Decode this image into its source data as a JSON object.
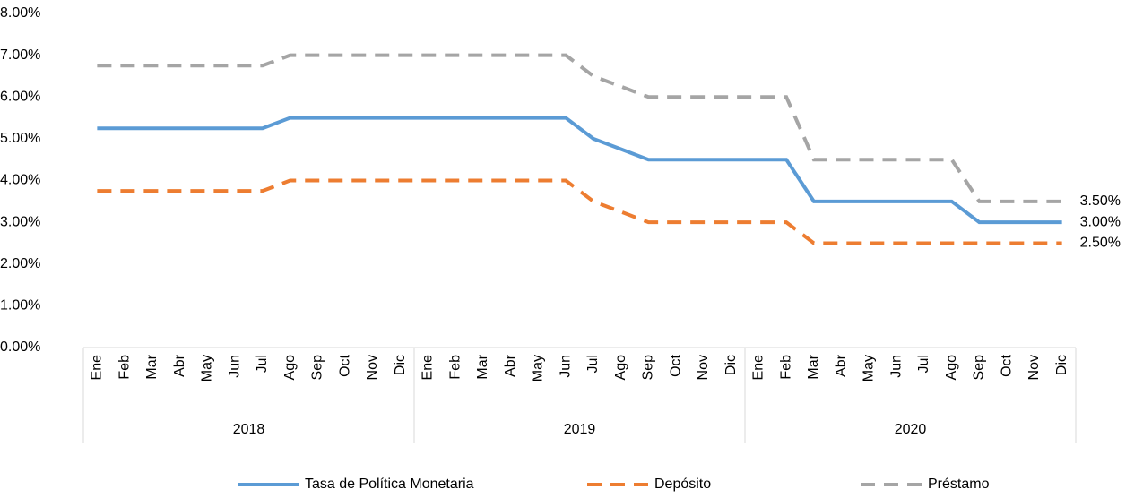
{
  "chart_data": {
    "type": "line",
    "categories": [
      "Ene",
      "Feb",
      "Mar",
      "Abr",
      "May",
      "Jun",
      "Jul",
      "Ago",
      "Sep",
      "Oct",
      "Nov",
      "Dic",
      "Ene",
      "Feb",
      "Mar",
      "Abr",
      "May",
      "Jun",
      "Jul",
      "Ago",
      "Sep",
      "Oct",
      "Nov",
      "Dic",
      "Ene",
      "Feb",
      "Mar",
      "Abr",
      "May",
      "Jun",
      "Jul",
      "Ago",
      "Sep",
      "Oct",
      "Nov",
      "Dic"
    ],
    "groups": [
      "2018",
      "2019",
      "2020"
    ],
    "ylim": [
      0,
      8
    ],
    "yticks": [
      {
        "value": 0,
        "label": "0.00%"
      },
      {
        "value": 1,
        "label": "1.00%"
      },
      {
        "value": 2,
        "label": "2.00%"
      },
      {
        "value": 3,
        "label": "3.00%"
      },
      {
        "value": 4,
        "label": "4.00%"
      },
      {
        "value": 5,
        "label": "5.00%"
      },
      {
        "value": 6,
        "label": "6.00%"
      },
      {
        "value": 7,
        "label": "7.00%"
      },
      {
        "value": 8,
        "label": "8.00%"
      }
    ],
    "grid": false,
    "legend": "bottom",
    "series": [
      {
        "name": "Tasa de Política Monetaria",
        "color": "#5b9bd5",
        "line_style": "solid",
        "values": [
          5.25,
          5.25,
          5.25,
          5.25,
          5.25,
          5.25,
          5.25,
          5.5,
          5.5,
          5.5,
          5.5,
          5.5,
          5.5,
          5.5,
          5.5,
          5.5,
          5.5,
          5.5,
          5.0,
          4.75,
          4.5,
          4.5,
          4.5,
          4.5,
          4.5,
          4.5,
          3.5,
          3.5,
          3.5,
          3.5,
          3.5,
          3.5,
          3.0,
          3.0,
          3.0,
          3.0
        ],
        "value_labels": [
          null,
          null,
          null,
          null,
          null,
          null,
          null,
          null,
          null,
          null,
          null,
          null,
          null,
          null,
          null,
          null,
          null,
          null,
          null,
          null,
          null,
          null,
          null,
          null,
          null,
          null,
          null,
          null,
          null,
          null,
          null,
          null,
          null,
          null,
          null,
          "3.00%"
        ]
      },
      {
        "name": "Depósito",
        "color": "#ed7d31",
        "line_style": "dashed",
        "values": [
          3.75,
          3.75,
          3.75,
          3.75,
          3.75,
          3.75,
          3.75,
          4.0,
          4.0,
          4.0,
          4.0,
          4.0,
          4.0,
          4.0,
          4.0,
          4.0,
          4.0,
          4.0,
          3.5,
          3.25,
          3.0,
          3.0,
          3.0,
          3.0,
          3.0,
          3.0,
          2.5,
          2.5,
          2.5,
          2.5,
          2.5,
          2.5,
          2.5,
          2.5,
          2.5,
          2.5
        ],
        "value_labels": [
          null,
          null,
          null,
          null,
          null,
          null,
          null,
          null,
          null,
          null,
          null,
          null,
          null,
          null,
          null,
          null,
          null,
          null,
          null,
          null,
          null,
          null,
          null,
          null,
          null,
          null,
          null,
          null,
          null,
          null,
          null,
          null,
          null,
          null,
          null,
          "2.50%"
        ]
      },
      {
        "name": "Préstamo",
        "color": "#a5a5a5",
        "line_style": "dashed",
        "values": [
          6.75,
          6.75,
          6.75,
          6.75,
          6.75,
          6.75,
          6.75,
          7.0,
          7.0,
          7.0,
          7.0,
          7.0,
          7.0,
          7.0,
          7.0,
          7.0,
          7.0,
          7.0,
          6.5,
          6.25,
          6.0,
          6.0,
          6.0,
          6.0,
          6.0,
          6.0,
          4.5,
          4.5,
          4.5,
          4.5,
          4.5,
          4.5,
          3.5,
          3.5,
          3.5,
          3.5
        ],
        "value_labels": [
          null,
          null,
          null,
          null,
          null,
          null,
          null,
          null,
          null,
          null,
          null,
          null,
          null,
          null,
          null,
          null,
          null,
          null,
          null,
          null,
          null,
          null,
          null,
          null,
          null,
          null,
          null,
          null,
          null,
          null,
          null,
          null,
          null,
          null,
          null,
          "3.50%"
        ]
      }
    ]
  }
}
